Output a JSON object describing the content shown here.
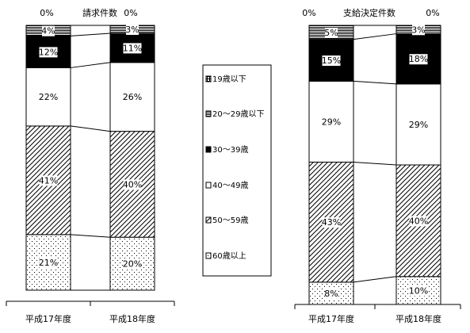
{
  "chart_data": {
    "type": "bar",
    "stacked": true,
    "normalized": true,
    "legend_placement": "center",
    "legend": [
      {
        "label": "19歳以下",
        "pattern": "grid"
      },
      {
        "label": "20～29歳以下",
        "pattern": "hlines"
      },
      {
        "label": "30～39歳",
        "pattern": "black"
      },
      {
        "label": "40～49歳",
        "pattern": "white"
      },
      {
        "label": "50～59歳",
        "pattern": "diag"
      },
      {
        "label": "60歳以上",
        "pattern": "dots"
      }
    ],
    "charts": [
      {
        "title": "請求件数",
        "categories": [
          "平成17年度",
          "平成18年度"
        ],
        "series": [
          {
            "name": "60歳以上",
            "values": [
              21,
              20
            ]
          },
          {
            "name": "50～59歳",
            "values": [
              41,
              40
            ]
          },
          {
            "name": "40～49歳",
            "values": [
              22,
              26
            ]
          },
          {
            "name": "30～39歳",
            "values": [
              12,
              11
            ]
          },
          {
            "name": "20～29歳以下",
            "values": [
              4,
              3
            ]
          },
          {
            "name": "19歳以下",
            "values": [
              0,
              0
            ]
          }
        ],
        "labels": [
          [
            "21%",
            "41%",
            "22%",
            "12%",
            "4%",
            "0%"
          ],
          [
            "20%",
            "40%",
            "26%",
            "11%",
            "3%",
            "0%"
          ]
        ]
      },
      {
        "title": "支給決定件数",
        "categories": [
          "平成17年度",
          "平成18年度"
        ],
        "series": [
          {
            "name": "60歳以上",
            "values": [
              8,
              10
            ]
          },
          {
            "name": "50～59歳",
            "values": [
              43,
              40
            ]
          },
          {
            "name": "40～49歳",
            "values": [
              29,
              29
            ]
          },
          {
            "name": "30～39歳",
            "values": [
              15,
              18
            ]
          },
          {
            "name": "20～29歳以下",
            "values": [
              5,
              3
            ]
          },
          {
            "name": "19歳以下",
            "values": [
              0,
              0
            ]
          }
        ],
        "labels": [
          [
            "8%",
            "43%",
            "29%",
            "15%",
            "5%",
            "0%"
          ],
          [
            "10%",
            "40%",
            "29%",
            "18%",
            "3%",
            "0%"
          ]
        ]
      }
    ]
  }
}
